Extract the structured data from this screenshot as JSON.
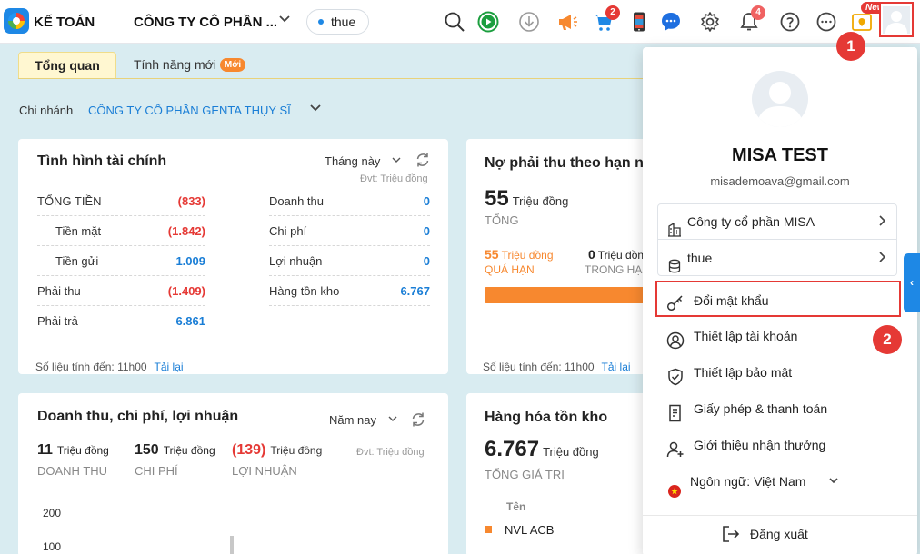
{
  "header": {
    "app_name": "KẾ TOÁN",
    "company": "CÔNG TY CÔ PHẦN ...",
    "database": "thue",
    "cart_badge": "2",
    "notification_badge": "4",
    "new_tag": "New",
    "icons": [
      "search-icon",
      "play-icon",
      "download-icon",
      "megaphone-icon",
      "cart-icon",
      "phone-icon",
      "chat-icon",
      "gear-icon",
      "bell-icon",
      "help-icon",
      "more-icon",
      "gift-icon",
      "avatar-icon"
    ]
  },
  "tabs": {
    "overview": "Tổng quan",
    "new_features": "Tính năng mới",
    "moi_badge": "Mới"
  },
  "branch": {
    "label": "Chi nhánh",
    "value": "CÔNG TY CỔ PHẦN GENTA THỤY SĨ"
  },
  "finance_card": {
    "title": "Tình hình tài chính",
    "period": "Tháng này",
    "unit": "Đvt: Triệu đồng",
    "left_rows": [
      {
        "label": "TỔNG TIỀN",
        "value": "(833)"
      },
      {
        "label": "Tiền mặt",
        "value": "(1.842)"
      },
      {
        "label": "Tiền gửi",
        "value": "1.009"
      },
      {
        "label": "Phải thu",
        "value": "(1.409)"
      },
      {
        "label": "Phải trả",
        "value": "6.861"
      }
    ],
    "right_rows": [
      {
        "label": "Doanh thu",
        "value": "0"
      },
      {
        "label": "Chi phí",
        "value": "0"
      },
      {
        "label": "Lợi nhuận",
        "value": "0"
      },
      {
        "label": "Hàng tồn kho",
        "value": "6.767"
      }
    ],
    "footer": "Số liệu tính đến: 11h00",
    "reload": "Tải lại"
  },
  "receivable_card": {
    "title": "Nợ phải thu theo hạn nợ",
    "total_value": "55",
    "total_unit": "Triệu đồng",
    "total_caption": "TỔNG",
    "overdue_value": "55",
    "overdue_unit": "Triệu đồng",
    "overdue_caption": "QUÁ HẠN",
    "ontime_value": "0",
    "ontime_unit": "Triệu đồng",
    "ontime_caption": "TRONG HẠN",
    "footer": "Số liệu tính đến: 11h00",
    "reload": "Tải lại"
  },
  "revenue_card": {
    "title": "Doanh thu, chi phí, lợi nhuận",
    "period": "Năm nay",
    "unit": "Đvt: Triệu đồng",
    "revenue_value": "11",
    "revenue_caption": "DOANH THU",
    "cost_value": "150",
    "cost_caption": "CHI PHÍ",
    "profit_value": "(139)",
    "profit_caption": "LỢI NHUẬN",
    "value_unit": "Triệu đồng",
    "y_labels": [
      "200",
      "100"
    ]
  },
  "inventory_card": {
    "title": "Hàng hóa tồn kho",
    "total_value": "6.767",
    "total_unit": "Triệu đồng",
    "total_caption": "TỔNG GIÁ TRỊ",
    "col_name": "Tên",
    "item_1": "NVL ACB"
  },
  "profile": {
    "name": "MISA TEST",
    "email": "misademoava@gmail.com",
    "company": "Công ty cổ phần MISA",
    "database": "thue",
    "change_password": "Đổi mật khẩu",
    "account_settings": "Thiết lập tài khoản",
    "security_settings": "Thiết lập bảo mật",
    "license_payment": "Giấy phép & thanh toán",
    "referral": "Giới thiệu nhận thưởng",
    "language": "Ngôn ngữ: Việt Nam",
    "logout": "Đăng xuất"
  },
  "steps": {
    "one": "1",
    "two": "2"
  },
  "colors": {
    "accent": "#1e88e5",
    "negative": "#e53935",
    "positive": "#1a7ed6",
    "warning": "#f7882f",
    "highlight": "#e53935"
  }
}
